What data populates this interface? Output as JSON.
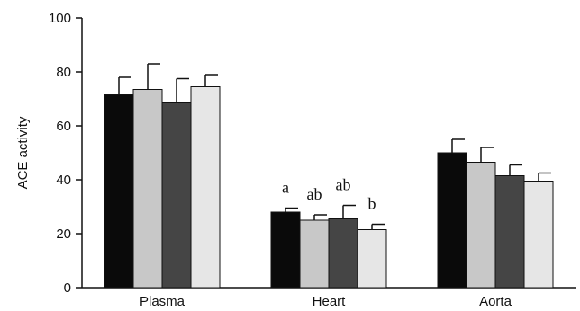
{
  "chart_data": {
    "type": "bar",
    "title": "",
    "xlabel": "",
    "ylabel": "ACE activity",
    "ylim": [
      0,
      100
    ],
    "yticks": [
      0,
      20,
      40,
      60,
      80,
      100
    ],
    "grid": false,
    "legend": "none",
    "categories": [
      "Plasma",
      "Heart",
      "Aorta"
    ],
    "series": [
      {
        "color": "#0a0a0a",
        "values": [
          71.5,
          28.0,
          50.0
        ],
        "errors": [
          6.5,
          1.5,
          5.0
        ]
      },
      {
        "color": "#c8c8c8",
        "values": [
          73.5,
          25.0,
          46.5
        ],
        "errors": [
          9.5,
          2.0,
          5.5
        ]
      },
      {
        "color": "#454545",
        "values": [
          68.5,
          25.5,
          41.5
        ],
        "errors": [
          9.0,
          5.0,
          4.0
        ]
      },
      {
        "color": "#e6e6e6",
        "values": [
          74.5,
          21.5,
          39.5
        ],
        "errors": [
          4.5,
          2.0,
          3.0
        ]
      }
    ],
    "annotations": [
      {
        "category": "Heart",
        "series_index": 0,
        "text": "a"
      },
      {
        "category": "Heart",
        "series_index": 1,
        "text": "ab"
      },
      {
        "category": "Heart",
        "series_index": 2,
        "text": "ab"
      },
      {
        "category": "Heart",
        "series_index": 3,
        "text": "b"
      }
    ]
  }
}
